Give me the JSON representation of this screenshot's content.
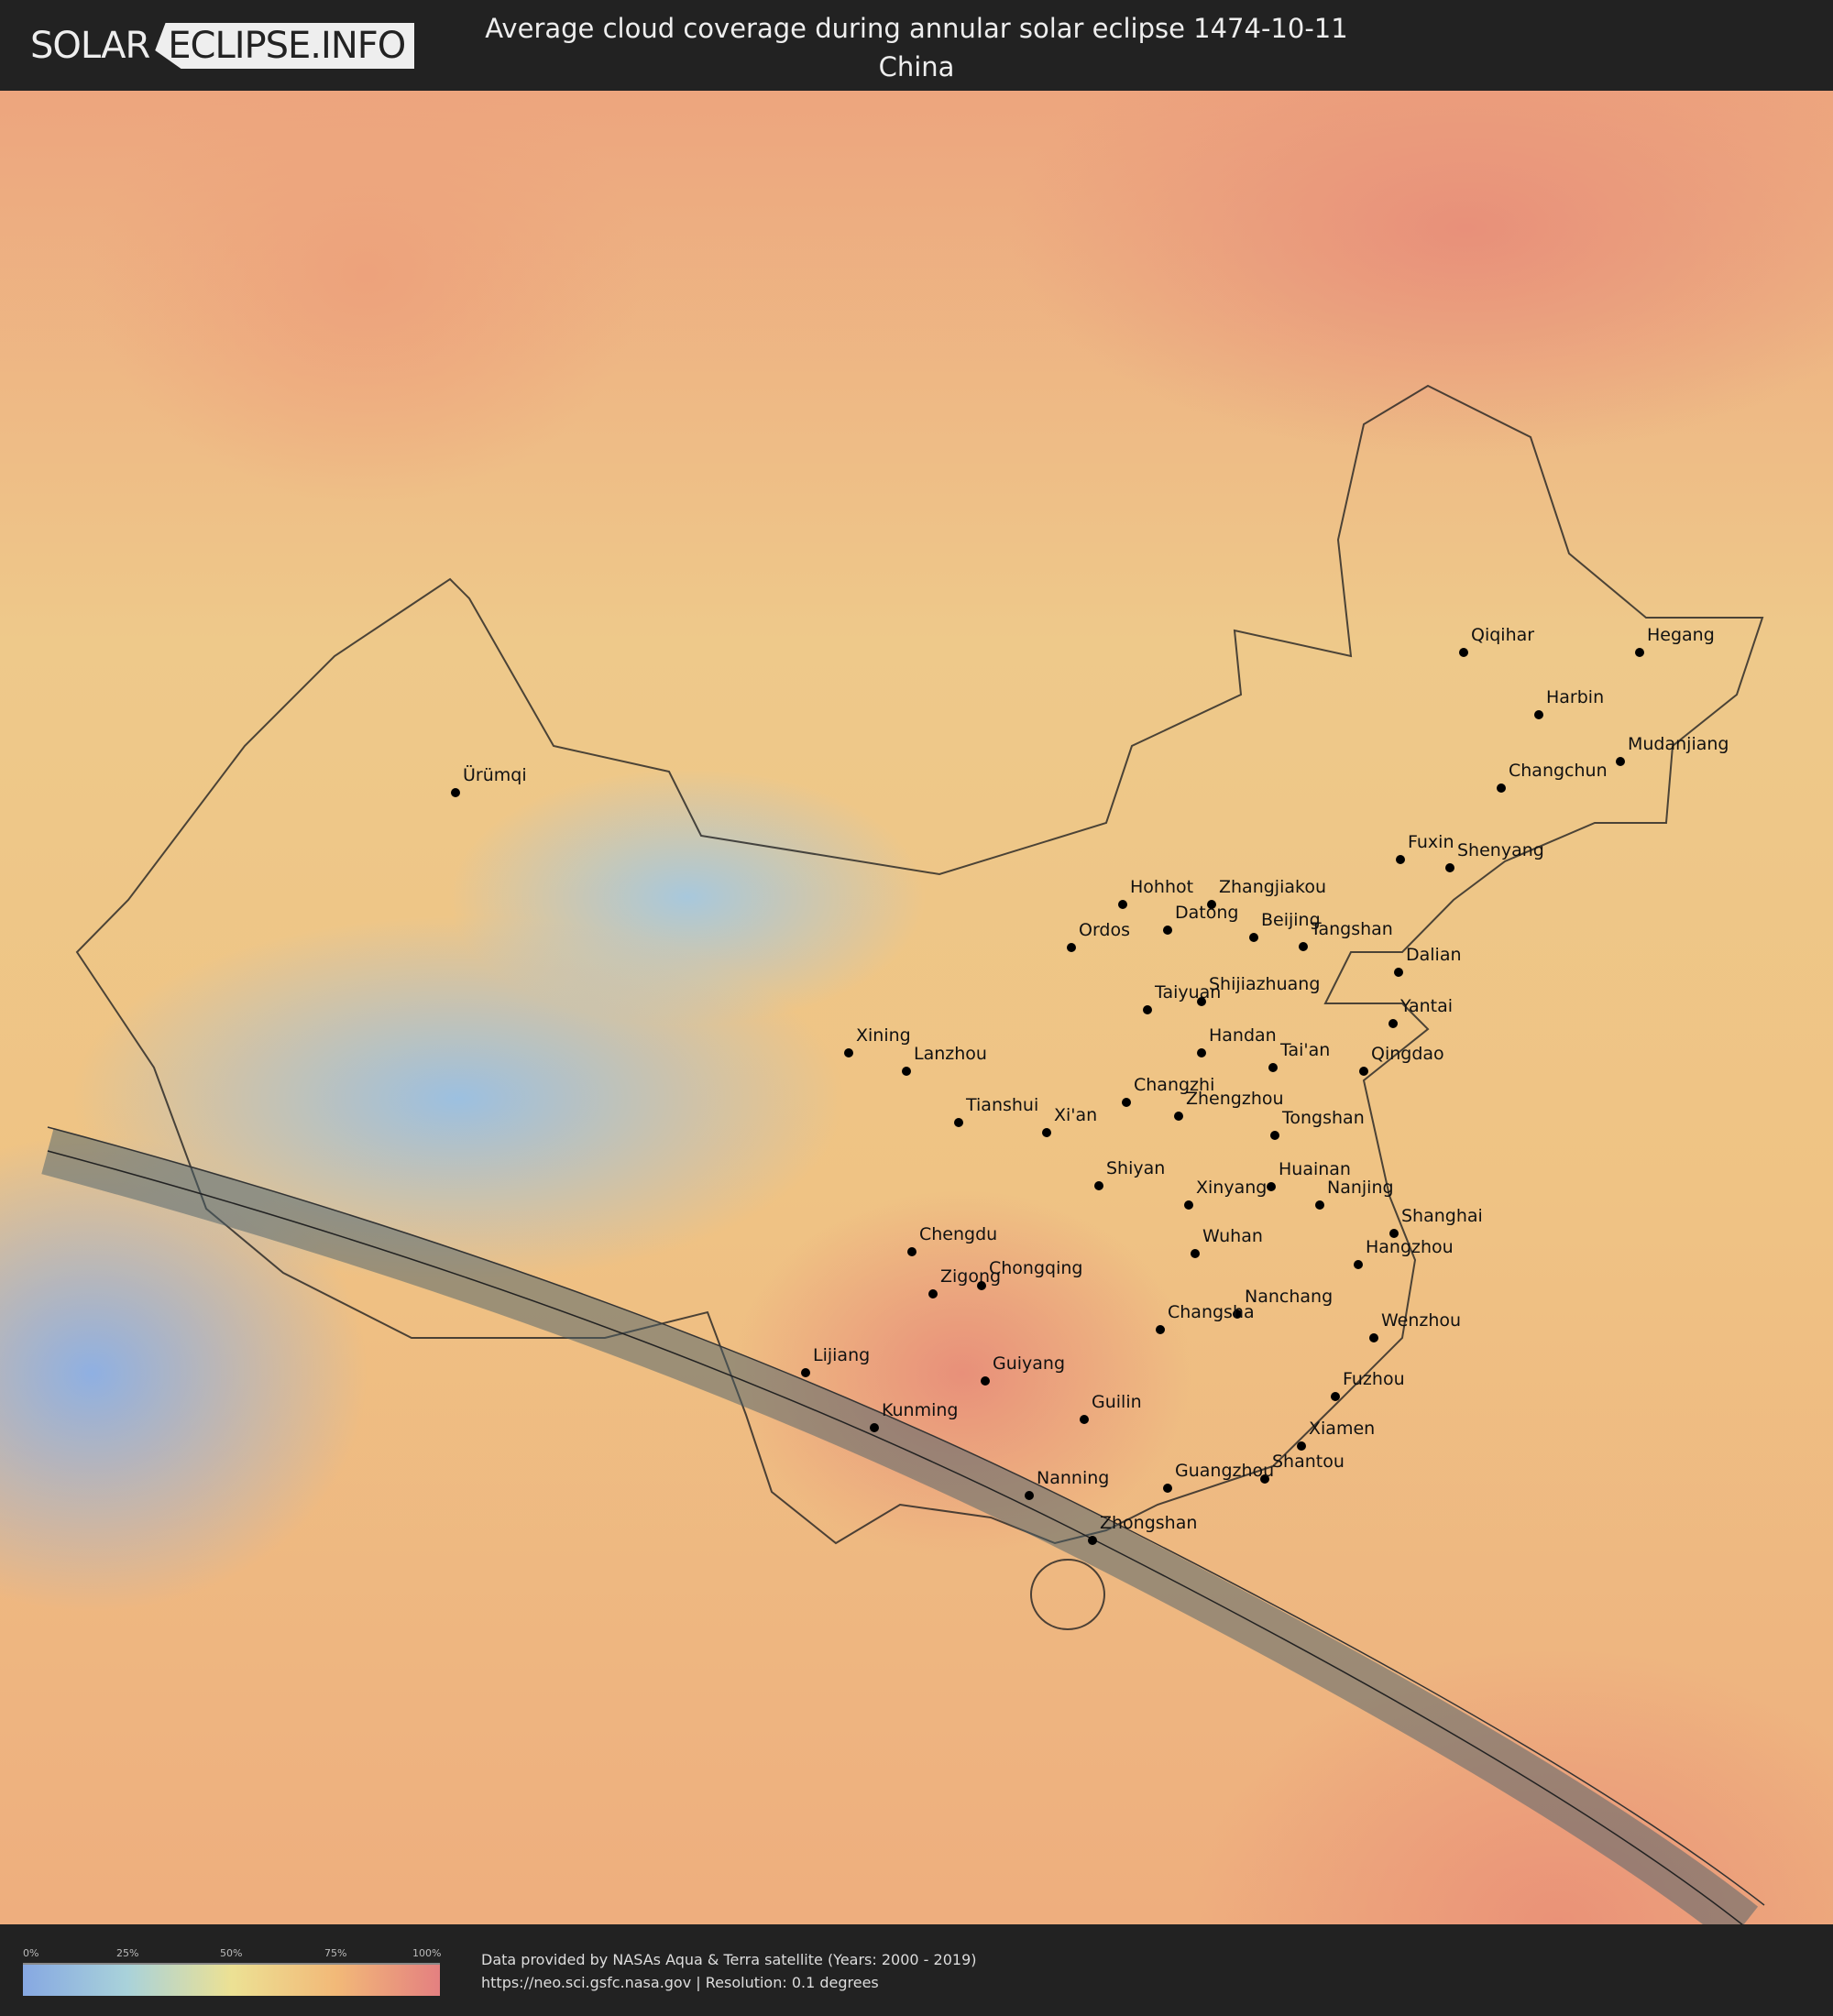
{
  "header": {
    "logo_left": "SOLAR",
    "logo_right": "ECLIPSE.INFO",
    "title": "Average cloud coverage during annular solar eclipse 1474-10-11",
    "subtitle": "China"
  },
  "map": {
    "eclipse_type": "annular",
    "path_color": "#4a5f6a",
    "cities": [
      {
        "name": "Ürümqi"
      },
      {
        "name": "Qiqihar"
      },
      {
        "name": "Hegang"
      },
      {
        "name": "Harbin"
      },
      {
        "name": "Mudanjiang"
      },
      {
        "name": "Changchun"
      },
      {
        "name": "Fuxin"
      },
      {
        "name": "Shenyang"
      },
      {
        "name": "Hohhot"
      },
      {
        "name": "Zhangjiakou"
      },
      {
        "name": "Datong"
      },
      {
        "name": "Beijing"
      },
      {
        "name": "Tangshan"
      },
      {
        "name": "Ordos"
      },
      {
        "name": "Dalian"
      },
      {
        "name": "Taiyuan"
      },
      {
        "name": "Shijiazhuang"
      },
      {
        "name": "Yantai"
      },
      {
        "name": "Xining"
      },
      {
        "name": "Lanzhou"
      },
      {
        "name": "Handan"
      },
      {
        "name": "Tai'an"
      },
      {
        "name": "Qingdao"
      },
      {
        "name": "Changzhi"
      },
      {
        "name": "Zhengzhou"
      },
      {
        "name": "Tianshui"
      },
      {
        "name": "Xi'an"
      },
      {
        "name": "Tongshan"
      },
      {
        "name": "Shiyan"
      },
      {
        "name": "Huainan"
      },
      {
        "name": "Xinyang"
      },
      {
        "name": "Nanjing"
      },
      {
        "name": "Shanghai"
      },
      {
        "name": "Chengdu"
      },
      {
        "name": "Wuhan"
      },
      {
        "name": "Hangzhou"
      },
      {
        "name": "Zigong"
      },
      {
        "name": "Chongqing"
      },
      {
        "name": "Nanchang"
      },
      {
        "name": "Changsha"
      },
      {
        "name": "Wenzhou"
      },
      {
        "name": "Lijiang"
      },
      {
        "name": "Guiyang"
      },
      {
        "name": "Fuzhou"
      },
      {
        "name": "Guilin"
      },
      {
        "name": "Kunming"
      },
      {
        "name": "Xiamen"
      },
      {
        "name": "Shantou"
      },
      {
        "name": "Guangzhou"
      },
      {
        "name": "Nanning"
      },
      {
        "name": "Zhongshan"
      }
    ]
  },
  "legend": {
    "ticks": [
      "0%",
      "25%",
      "50%",
      "75%",
      "100%"
    ],
    "colors": [
      "#86a8e2",
      "#a9d2da",
      "#ece194",
      "#f2b978",
      "#e48080"
    ]
  },
  "footer": {
    "credit_line1": "Data provided by NASAs Aqua & Terra satellite (Years: 2000 - 2019)",
    "credit_line2": "https://neo.sci.gsfc.nasa.gov | Resolution: 0.1 degrees"
  }
}
